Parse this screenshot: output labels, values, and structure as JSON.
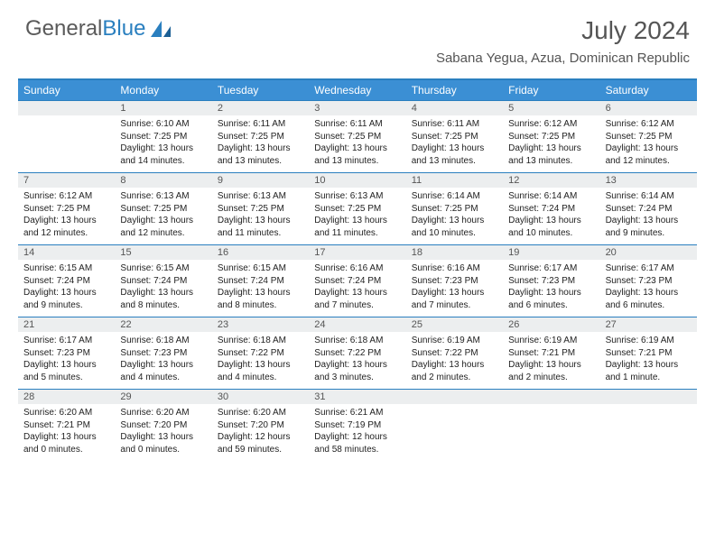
{
  "brand": {
    "name1": "General",
    "name2": "Blue"
  },
  "title": "July 2024",
  "location": "Sabana Yegua, Azua, Dominican Republic",
  "colors": {
    "header_bg": "#3b8fd4",
    "header_text": "#ffffff",
    "border": "#2a7fbf",
    "daynum_bg": "#eceeef",
    "text": "#555555",
    "body_text": "#222222"
  },
  "day_names": [
    "Sunday",
    "Monday",
    "Tuesday",
    "Wednesday",
    "Thursday",
    "Friday",
    "Saturday"
  ],
  "weeks": [
    [
      {
        "num": "",
        "lines": []
      },
      {
        "num": "1",
        "lines": [
          "Sunrise: 6:10 AM",
          "Sunset: 7:25 PM",
          "Daylight: 13 hours and 14 minutes."
        ]
      },
      {
        "num": "2",
        "lines": [
          "Sunrise: 6:11 AM",
          "Sunset: 7:25 PM",
          "Daylight: 13 hours and 13 minutes."
        ]
      },
      {
        "num": "3",
        "lines": [
          "Sunrise: 6:11 AM",
          "Sunset: 7:25 PM",
          "Daylight: 13 hours and 13 minutes."
        ]
      },
      {
        "num": "4",
        "lines": [
          "Sunrise: 6:11 AM",
          "Sunset: 7:25 PM",
          "Daylight: 13 hours and 13 minutes."
        ]
      },
      {
        "num": "5",
        "lines": [
          "Sunrise: 6:12 AM",
          "Sunset: 7:25 PM",
          "Daylight: 13 hours and 13 minutes."
        ]
      },
      {
        "num": "6",
        "lines": [
          "Sunrise: 6:12 AM",
          "Sunset: 7:25 PM",
          "Daylight: 13 hours and 12 minutes."
        ]
      }
    ],
    [
      {
        "num": "7",
        "lines": [
          "Sunrise: 6:12 AM",
          "Sunset: 7:25 PM",
          "Daylight: 13 hours and 12 minutes."
        ]
      },
      {
        "num": "8",
        "lines": [
          "Sunrise: 6:13 AM",
          "Sunset: 7:25 PM",
          "Daylight: 13 hours and 12 minutes."
        ]
      },
      {
        "num": "9",
        "lines": [
          "Sunrise: 6:13 AM",
          "Sunset: 7:25 PM",
          "Daylight: 13 hours and 11 minutes."
        ]
      },
      {
        "num": "10",
        "lines": [
          "Sunrise: 6:13 AM",
          "Sunset: 7:25 PM",
          "Daylight: 13 hours and 11 minutes."
        ]
      },
      {
        "num": "11",
        "lines": [
          "Sunrise: 6:14 AM",
          "Sunset: 7:25 PM",
          "Daylight: 13 hours and 10 minutes."
        ]
      },
      {
        "num": "12",
        "lines": [
          "Sunrise: 6:14 AM",
          "Sunset: 7:24 PM",
          "Daylight: 13 hours and 10 minutes."
        ]
      },
      {
        "num": "13",
        "lines": [
          "Sunrise: 6:14 AM",
          "Sunset: 7:24 PM",
          "Daylight: 13 hours and 9 minutes."
        ]
      }
    ],
    [
      {
        "num": "14",
        "lines": [
          "Sunrise: 6:15 AM",
          "Sunset: 7:24 PM",
          "Daylight: 13 hours and 9 minutes."
        ]
      },
      {
        "num": "15",
        "lines": [
          "Sunrise: 6:15 AM",
          "Sunset: 7:24 PM",
          "Daylight: 13 hours and 8 minutes."
        ]
      },
      {
        "num": "16",
        "lines": [
          "Sunrise: 6:15 AM",
          "Sunset: 7:24 PM",
          "Daylight: 13 hours and 8 minutes."
        ]
      },
      {
        "num": "17",
        "lines": [
          "Sunrise: 6:16 AM",
          "Sunset: 7:24 PM",
          "Daylight: 13 hours and 7 minutes."
        ]
      },
      {
        "num": "18",
        "lines": [
          "Sunrise: 6:16 AM",
          "Sunset: 7:23 PM",
          "Daylight: 13 hours and 7 minutes."
        ]
      },
      {
        "num": "19",
        "lines": [
          "Sunrise: 6:17 AM",
          "Sunset: 7:23 PM",
          "Daylight: 13 hours and 6 minutes."
        ]
      },
      {
        "num": "20",
        "lines": [
          "Sunrise: 6:17 AM",
          "Sunset: 7:23 PM",
          "Daylight: 13 hours and 6 minutes."
        ]
      }
    ],
    [
      {
        "num": "21",
        "lines": [
          "Sunrise: 6:17 AM",
          "Sunset: 7:23 PM",
          "Daylight: 13 hours and 5 minutes."
        ]
      },
      {
        "num": "22",
        "lines": [
          "Sunrise: 6:18 AM",
          "Sunset: 7:23 PM",
          "Daylight: 13 hours and 4 minutes."
        ]
      },
      {
        "num": "23",
        "lines": [
          "Sunrise: 6:18 AM",
          "Sunset: 7:22 PM",
          "Daylight: 13 hours and 4 minutes."
        ]
      },
      {
        "num": "24",
        "lines": [
          "Sunrise: 6:18 AM",
          "Sunset: 7:22 PM",
          "Daylight: 13 hours and 3 minutes."
        ]
      },
      {
        "num": "25",
        "lines": [
          "Sunrise: 6:19 AM",
          "Sunset: 7:22 PM",
          "Daylight: 13 hours and 2 minutes."
        ]
      },
      {
        "num": "26",
        "lines": [
          "Sunrise: 6:19 AM",
          "Sunset: 7:21 PM",
          "Daylight: 13 hours and 2 minutes."
        ]
      },
      {
        "num": "27",
        "lines": [
          "Sunrise: 6:19 AM",
          "Sunset: 7:21 PM",
          "Daylight: 13 hours and 1 minute."
        ]
      }
    ],
    [
      {
        "num": "28",
        "lines": [
          "Sunrise: 6:20 AM",
          "Sunset: 7:21 PM",
          "Daylight: 13 hours and 0 minutes."
        ]
      },
      {
        "num": "29",
        "lines": [
          "Sunrise: 6:20 AM",
          "Sunset: 7:20 PM",
          "Daylight: 13 hours and 0 minutes."
        ]
      },
      {
        "num": "30",
        "lines": [
          "Sunrise: 6:20 AM",
          "Sunset: 7:20 PM",
          "Daylight: 12 hours and 59 minutes."
        ]
      },
      {
        "num": "31",
        "lines": [
          "Sunrise: 6:21 AM",
          "Sunset: 7:19 PM",
          "Daylight: 12 hours and 58 minutes."
        ]
      },
      {
        "num": "",
        "lines": []
      },
      {
        "num": "",
        "lines": []
      },
      {
        "num": "",
        "lines": []
      }
    ]
  ]
}
